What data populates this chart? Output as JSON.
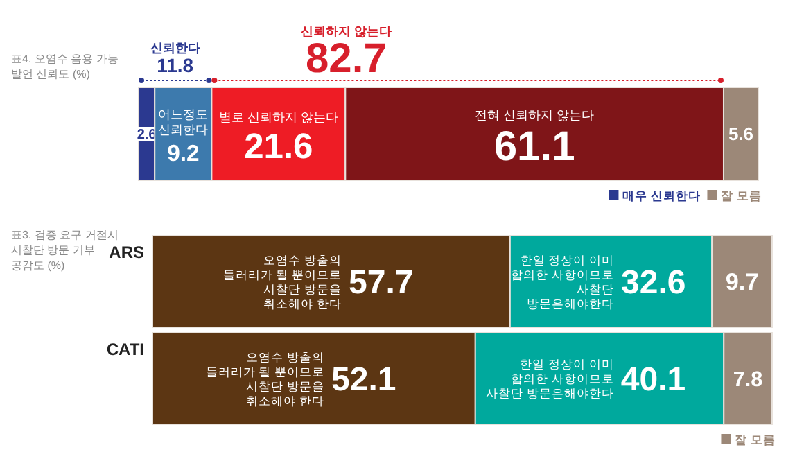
{
  "chart_data": [
    {
      "type": "bar",
      "orientation": "horizontal",
      "stacked": true,
      "title": "표4. 오염수 음용 가능 발언 신뢰도 (%)",
      "categories": [
        null
      ],
      "tick_labels": false,
      "data_labels": true,
      "legend": "bottom right",
      "series": [
        {
          "name": "매우 신뢰한다",
          "color": "#2b3990",
          "values": [
            2.6
          ]
        },
        {
          "name": "어느정도 신뢰한다",
          "color": "#3d7aad",
          "values": [
            9.2
          ]
        },
        {
          "name": "별로 신뢰하지 않는다",
          "color": "#ee1c25",
          "values": [
            21.6
          ]
        },
        {
          "name": "전혀 신뢰하지 않는다",
          "color": "#7f1518",
          "values": [
            61.1
          ]
        },
        {
          "name": "잘 모름",
          "color": "#9c8878",
          "values": [
            5.6
          ]
        }
      ],
      "annotations": [
        "신뢰한다",
        "11.8",
        "신뢰하지 않는다",
        "82.7"
      ]
    },
    {
      "type": "bar",
      "orientation": "horizontal",
      "stacked": true,
      "title": "표3. 검증 요구 거절시 시찰단 방문 거부 공감도 (%)",
      "categories": [
        "ARS",
        "CATI"
      ],
      "tick_labels": "y",
      "data_labels": true,
      "legend": "bottom right",
      "series": [
        {
          "name": "오염수 방출의 들러리가 될 뿐이므로 시찰단 방문을 취소해야 한다",
          "color": "#5c3613",
          "values": [
            57.7,
            52.1
          ]
        },
        {
          "name": "한일 정상이 이미 합의한 사항이므로 사찰단 방문은해야한다",
          "color": "#00a99d",
          "values": [
            32.6,
            40.1
          ]
        },
        {
          "name": "잘 모름",
          "color": "#9c8878",
          "values": [
            9.7,
            7.8
          ]
        }
      ]
    }
  ]
}
